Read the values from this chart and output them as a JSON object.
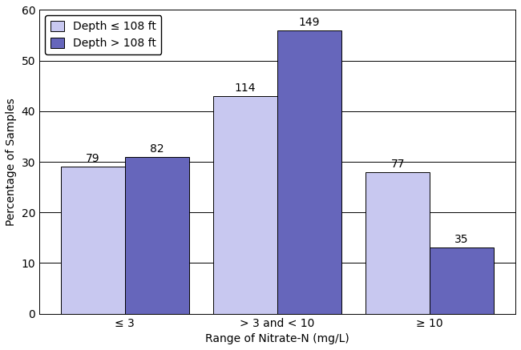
{
  "categories": [
    "≤ 3",
    "> 3 and < 10",
    "≥ 10"
  ],
  "shallow_values": [
    29.0,
    43.0,
    28.0
  ],
  "deep_values": [
    31.0,
    56.0,
    13.0
  ],
  "shallow_labels": [
    "79",
    "114",
    "77"
  ],
  "deep_labels": [
    "82",
    "149",
    "35"
  ],
  "shallow_color": "#c8c8f0",
  "deep_color": "#6666bb",
  "xlabel": "Range of Nitrate-N (mg/L)",
  "ylabel": "Percentage of Samples",
  "ylim": [
    0,
    60
  ],
  "yticks": [
    0,
    10,
    20,
    30,
    40,
    50,
    60
  ],
  "legend_shallow": "Depth ≤ 108 ft",
  "legend_deep": "Depth > 108 ft",
  "bar_width": 0.42,
  "label_fontsize": 10,
  "tick_fontsize": 10,
  "annotation_fontsize": 10
}
